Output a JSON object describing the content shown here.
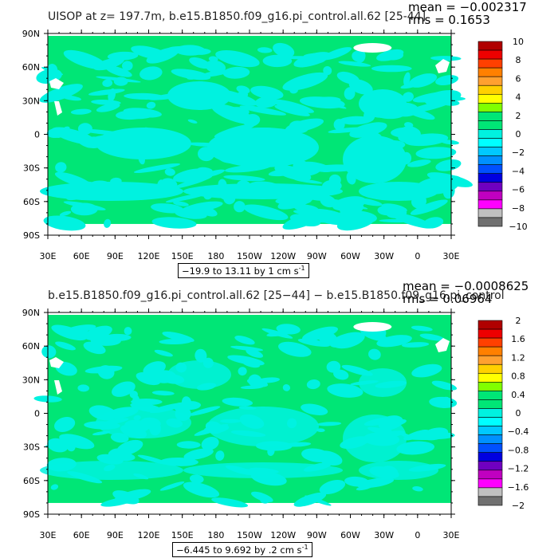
{
  "panels": [
    {
      "title": "UISOP at z= 197.7m, b.e15.B1850.f09_g16.pi_control.all.62 [25-44]",
      "mean_text": "mean = −0.002317",
      "rms_text": "rms = 0.1653",
      "range_text": "−19.9 to 13.11 by 1 cm s",
      "range_unit_sup": "-1",
      "colorbar_labels": [
        "10",
        "8",
        "6",
        "4",
        "2",
        "0",
        "−2",
        "−4",
        "−6",
        "−8",
        "−10"
      ],
      "lat_labels": [
        "90N",
        "60N",
        "30N",
        "0",
        "30S",
        "60S",
        "90S"
      ],
      "lon_labels": [
        "30E",
        "60E",
        "90E",
        "120E",
        "150E",
        "180",
        "150W",
        "120W",
        "90W",
        "60W",
        "30W",
        "0",
        "30E"
      ]
    },
    {
      "title": "b.e15.B1850.f09_g16.pi_control.all.62 [25−44] − b.e15.B1850.f09_g16.pi_control",
      "mean_text": "mean = −0.0008625",
      "rms_text": "rms = 0.06964",
      "range_text": "−6.445 to 9.692 by .2 cm s",
      "range_unit_sup": "-1",
      "colorbar_labels": [
        "2",
        "1.6",
        "1.2",
        "0.8",
        "0.4",
        "0",
        "−0.4",
        "−0.8",
        "−1.2",
        "−1.6",
        "−2"
      ],
      "lat_labels": [
        "90N",
        "60N",
        "30N",
        "0",
        "30S",
        "60S",
        "90S"
      ],
      "lon_labels": [
        "30E",
        "60E",
        "90E",
        "120E",
        "150E",
        "180",
        "150W",
        "120W",
        "90W",
        "60W",
        "30W",
        "0",
        "30E"
      ]
    }
  ],
  "colors": {
    "ocean_near_zero": "#00e676",
    "ocean_slightly_negative": "#00f2e0",
    "land": "#ffffff",
    "colorbar": [
      "#b00000",
      "#ee0000",
      "#ff4000",
      "#ff8000",
      "#ffa030",
      "#ffd000",
      "#ffff00",
      "#80ff00",
      "#00e676",
      "#00e676",
      "#00f2e0",
      "#00ffff",
      "#00c8ff",
      "#0090ff",
      "#0050ff",
      "#0000e0",
      "#7000c0",
      "#c000c0",
      "#ff00ff",
      "#c0c0c0",
      "#707070"
    ]
  }
}
